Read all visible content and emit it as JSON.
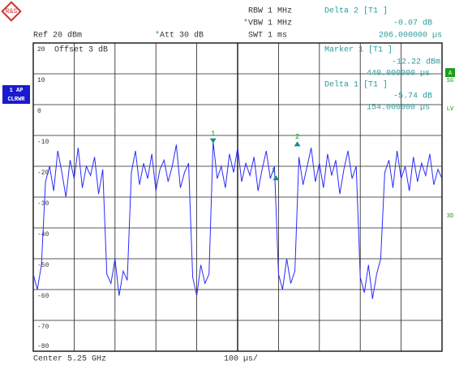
{
  "header": {
    "rbw": "RBW 1 MHz",
    "vbw": "VBW 1 MHz",
    "vbw_flag": "*",
    "swt": "SWT 1 ms",
    "ref": "Ref 20 dBm",
    "att": "Att 30 dB",
    "att_flag": "*",
    "delta2": {
      "title": "Delta 2 [T1 ]",
      "value": "-0.07 dB",
      "time": "206.000000 µs"
    }
  },
  "screen": {
    "offset": "Offset 3 dB",
    "marker1": {
      "title": "Marker 1 [T1 ]",
      "value": "-12.22 dBm",
      "time": "440.000000 µs"
    },
    "delta1": {
      "title": "Delta 1 [T1 ]",
      "value": "-5.74 dB",
      "time": "154.000000 µs"
    }
  },
  "side": {
    "trace_mode": "1 AP",
    "detector": "CLRWR",
    "a": "A",
    "sg": "SG",
    "lv": "LV",
    "d3": "3D"
  },
  "footer": {
    "center": "Center 5.25 GHz",
    "span": "100 µs/"
  },
  "trace": {
    "xlim": [
      0,
      1000
    ],
    "ylim": [
      -80,
      20
    ],
    "xticks": [
      0,
      100,
      200,
      300,
      400,
      500,
      600,
      700,
      800,
      900,
      1000
    ],
    "yticks": [
      20,
      10,
      0,
      -10,
      -20,
      -30,
      -40,
      -50,
      -60,
      -70,
      -80
    ],
    "color": "#2a2aff",
    "x": [
      0,
      10,
      20,
      30,
      40,
      50,
      60,
      70,
      80,
      90,
      100,
      110,
      120,
      130,
      140,
      150,
      160,
      170,
      180,
      190,
      200,
      210,
      220,
      230,
      240,
      250,
      260,
      270,
      280,
      290,
      300,
      310,
      320,
      330,
      340,
      350,
      360,
      370,
      380,
      390,
      400,
      410,
      420,
      430,
      440,
      450,
      460,
      470,
      480,
      490,
      500,
      510,
      520,
      530,
      540,
      550,
      560,
      570,
      580,
      590,
      600,
      610,
      620,
      630,
      640,
      650,
      660,
      670,
      680,
      690,
      700,
      710,
      720,
      730,
      740,
      750,
      760,
      770,
      780,
      790,
      800,
      810,
      820,
      830,
      840,
      850,
      860,
      870,
      880,
      890,
      900,
      910,
      920,
      930,
      940,
      950,
      960,
      970,
      980,
      990,
      1000
    ],
    "values": [
      -55,
      -60,
      -52,
      -25,
      -20,
      -28,
      -15,
      -22,
      -30,
      -18,
      -24,
      -14,
      -27,
      -20,
      -23,
      -17,
      -29,
      -21,
      -55,
      -58,
      -50,
      -62,
      -54,
      -57,
      -22,
      -15,
      -26,
      -19,
      -24,
      -16,
      -28,
      -21,
      -18,
      -25,
      -20,
      -13,
      -27,
      -22,
      -19,
      -56,
      -62,
      -52,
      -58,
      -55,
      -12,
      -24,
      -20,
      -27,
      -16,
      -22,
      -14,
      -25,
      -19,
      -23,
      -17,
      -28,
      -21,
      -15,
      -24,
      -20,
      -55,
      -60,
      -50,
      -58,
      -54,
      -17,
      -26,
      -20,
      -14,
      -25,
      -19,
      -27,
      -16,
      -23,
      -18,
      -29,
      -21,
      -15,
      -24,
      -20,
      -56,
      -61,
      -52,
      -63,
      -55,
      -50,
      -22,
      -18,
      -27,
      -15,
      -24,
      -20,
      -28,
      -17,
      -25,
      -19,
      -23,
      -16,
      -26,
      -21,
      -24
    ],
    "markers": [
      {
        "label": "1",
        "x": 440,
        "y": -12
      },
      {
        "label": "2",
        "x": 646,
        "y": -13
      },
      {
        "label": "1",
        "x": 594,
        "y": -24
      }
    ]
  }
}
